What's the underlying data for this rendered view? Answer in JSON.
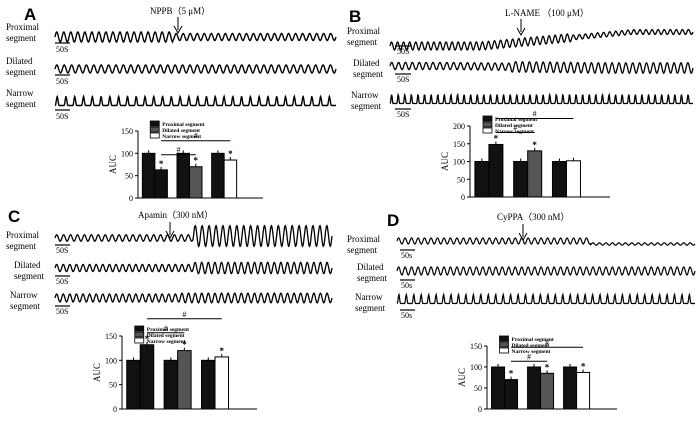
{
  "panels": [
    {
      "id": "A",
      "letter": "A",
      "drug": "NPPB（5 μM）",
      "traces": [
        {
          "label": "Proximal\nsegment",
          "scale": "50S"
        },
        {
          "label": "Dilated\nsegment",
          "scale": "50S"
        },
        {
          "label": "Narrow\nsegment",
          "scale": "50S"
        }
      ],
      "chart_data": {
        "type": "bar",
        "ylabel": "AUC",
        "ylim": [
          0,
          150
        ],
        "yticks": [
          0,
          50,
          100,
          150
        ],
        "legend": [
          "Proximal segment",
          "Dilated segment",
          "Narrow segment"
        ],
        "legend_position": "top",
        "groups": [
          {
            "series": "Proximal segment",
            "values": [
              100,
              63
            ],
            "star": [
              false,
              true
            ]
          },
          {
            "series": "Dilated segment",
            "values": [
              100,
              70
            ],
            "star": [
              false,
              true
            ]
          },
          {
            "series": "Narrow segment",
            "values": [
              100,
              85
            ],
            "star": [
              false,
              true
            ]
          }
        ],
        "annotations": [
          "*",
          "#",
          "#"
        ]
      }
    },
    {
      "id": "B",
      "letter": "B",
      "drug": "L-NAME （100 μM）",
      "traces": [
        {
          "label": "Proximal\nsegment",
          "scale": "50S"
        },
        {
          "label": "Dilated\nsegment",
          "scale": "50S"
        },
        {
          "label": "Narrow\nsegment",
          "scale": "50S"
        }
      ],
      "chart_data": {
        "type": "bar",
        "ylabel": "AUC",
        "ylim": [
          0,
          200
        ],
        "yticks": [
          0,
          50,
          100,
          150,
          200
        ],
        "legend": [
          "Proximal segment",
          "Dilated segment",
          "Narrow segment"
        ],
        "legend_position": "top-right",
        "groups": [
          {
            "series": "Proximal segment",
            "values": [
              100,
              148
            ],
            "star": [
              false,
              true
            ]
          },
          {
            "series": "Dilated segment",
            "values": [
              100,
              130
            ],
            "star": [
              false,
              true
            ]
          },
          {
            "series": "Narrow segment",
            "values": [
              100,
              102
            ],
            "star": [
              false,
              false
            ]
          }
        ],
        "annotations": [
          "*",
          "#",
          "#"
        ]
      }
    },
    {
      "id": "C",
      "letter": "C",
      "drug": "Apamin（300 nM）",
      "traces": [
        {
          "label": "Proximal\nsegment",
          "scale": "50S"
        },
        {
          "label": "Dilated\nsegment",
          "scale": "50S"
        },
        {
          "label": "Narrow\nsegment",
          "scale": "50S"
        }
      ],
      "chart_data": {
        "type": "bar",
        "ylabel": "AUC",
        "ylim": [
          0,
          150
        ],
        "yticks": [
          0,
          50,
          100,
          150
        ],
        "legend": [
          "Proximal segment",
          "Dilated segment",
          "Narrow segment"
        ],
        "legend_position": "top-right",
        "groups": [
          {
            "series": "Proximal segment",
            "values": [
              100,
              132
            ],
            "star": [
              false,
              true
            ]
          },
          {
            "series": "Dilated segment",
            "values": [
              100,
              120
            ],
            "star": [
              false,
              true
            ]
          },
          {
            "series": "Narrow segment",
            "values": [
              100,
              107
            ],
            "star": [
              false,
              true
            ]
          }
        ],
        "annotations": [
          "*",
          "#",
          "#"
        ]
      }
    },
    {
      "id": "D",
      "letter": "D",
      "drug": "CyPPA（300 nM）",
      "traces": [
        {
          "label": "Proximal\nsegment",
          "scale": "50s"
        },
        {
          "label": "Dilated\nsegment",
          "scale": "50s"
        },
        {
          "label": "Narrow\nsegment",
          "scale": "50s"
        }
      ],
      "chart_data": {
        "type": "bar",
        "ylabel": "AUC",
        "ylim": [
          0,
          150
        ],
        "yticks": [
          0,
          50,
          100,
          150
        ],
        "legend": [
          "Proximal segment",
          "Dilated segment",
          "Narrow segment"
        ],
        "legend_position": "top",
        "groups": [
          {
            "series": "Proximal segment",
            "values": [
              100,
              70
            ],
            "star": [
              false,
              true
            ]
          },
          {
            "series": "Dilated segment",
            "values": [
              100,
              85
            ],
            "star": [
              false,
              true
            ]
          },
          {
            "series": "Narrow segment",
            "values": [
              100,
              87
            ],
            "star": [
              false,
              true
            ]
          }
        ],
        "annotations": [
          "*",
          "#",
          "#"
        ]
      }
    }
  ]
}
